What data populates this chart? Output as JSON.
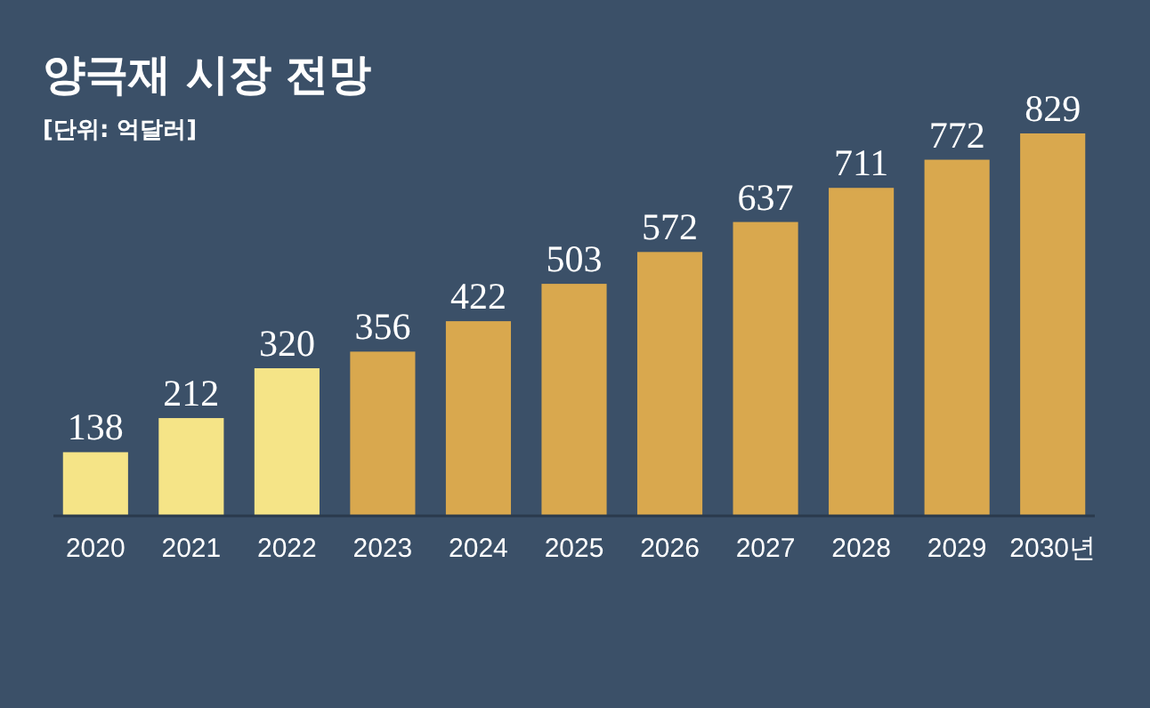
{
  "chart_data": {
    "type": "bar",
    "title": "양극재 시장 전망",
    "subtitle": "[단위: 억달러]",
    "categories": [
      "2020",
      "2021",
      "2022",
      "2023",
      "2024",
      "2025",
      "2026",
      "2027",
      "2028",
      "2029",
      "2030년"
    ],
    "values": [
      138,
      212,
      320,
      356,
      422,
      503,
      572,
      637,
      711,
      772,
      829
    ],
    "colors": [
      "#f5e487",
      "#f5e487",
      "#f5e487",
      "#d9a84e",
      "#d9a84e",
      "#d9a84e",
      "#d9a84e",
      "#d9a84e",
      "#d9a84e",
      "#d9a84e",
      "#d9a84e"
    ],
    "data_labels": true
  }
}
